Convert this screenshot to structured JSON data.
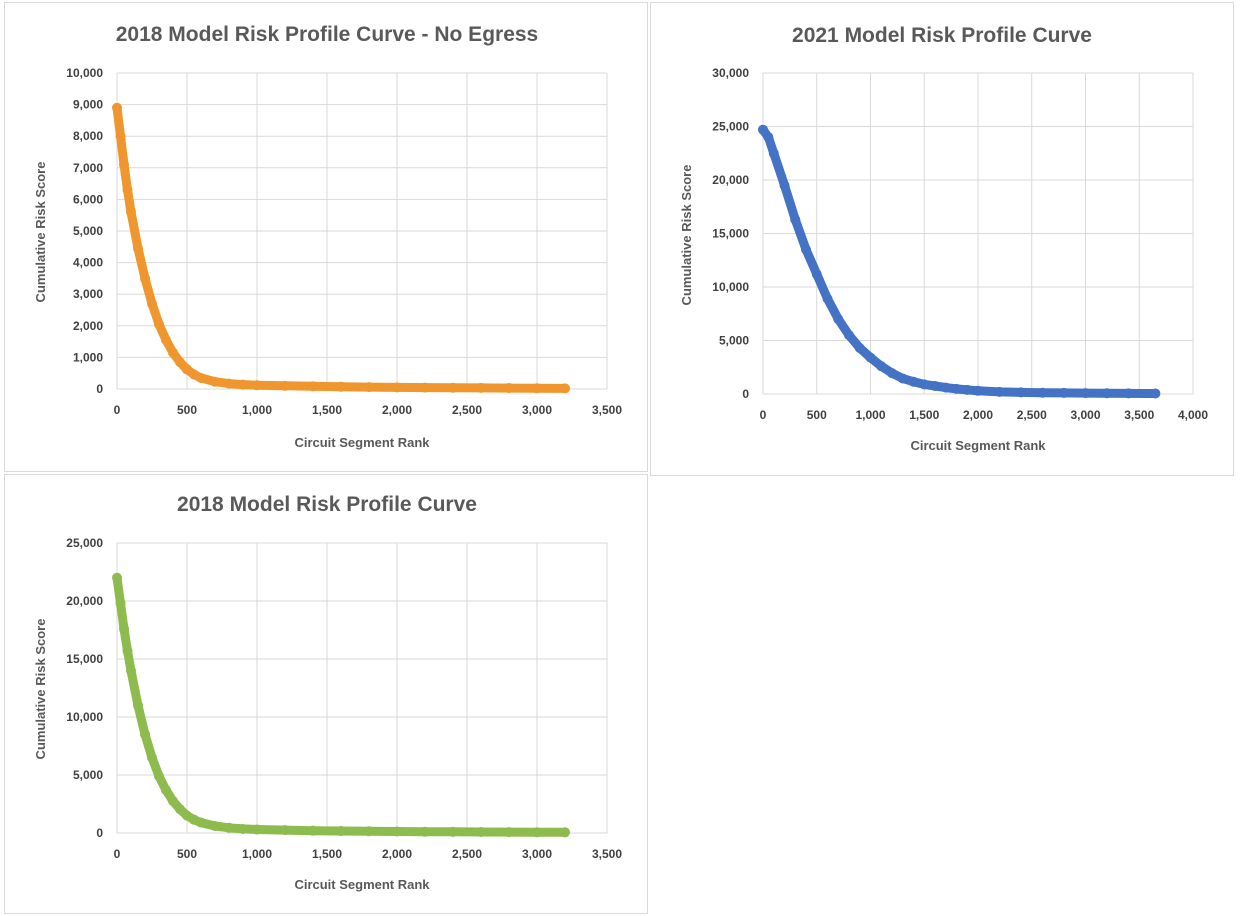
{
  "chart_data": [
    {
      "type": "scatter",
      "title": "2018 Model Risk Profile Curve - No Egress",
      "xlabel": "Circuit Segment Rank",
      "ylabel": "Cumulative Risk Score",
      "xlim": [
        0,
        3500
      ],
      "ylim": [
        0,
        10000
      ],
      "x_ticks": [
        "0",
        "500",
        "1,000",
        "1,500",
        "2,000",
        "2,500",
        "3,000",
        "3,500"
      ],
      "y_ticks": [
        "0",
        "1,000",
        "2,000",
        "3,000",
        "4,000",
        "5,000",
        "6,000",
        "7,000",
        "8,000",
        "9,000",
        "10,000"
      ],
      "grid": true,
      "legend": "none",
      "color": "#f0962e",
      "x": [
        0,
        25,
        50,
        75,
        100,
        150,
        200,
        250,
        300,
        350,
        400,
        450,
        500,
        550,
        600,
        700,
        800,
        900,
        1000,
        1200,
        1400,
        1600,
        1800,
        2000,
        2200,
        2400,
        2600,
        2800,
        3000,
        3200
      ],
      "y": [
        8900,
        8000,
        7100,
        6300,
        5600,
        4450,
        3500,
        2700,
        2050,
        1550,
        1150,
        850,
        620,
        460,
        350,
        230,
        170,
        140,
        120,
        100,
        85,
        70,
        60,
        50,
        45,
        40,
        35,
        30,
        25,
        20
      ]
    },
    {
      "type": "scatter",
      "title": "2021 Model Risk Profile Curve",
      "xlabel": "Circuit Segment Rank",
      "ylabel": "Cumulative Risk Score",
      "xlim": [
        0,
        4000
      ],
      "ylim": [
        0,
        30000
      ],
      "x_ticks": [
        "0",
        "500",
        "1,000",
        "1,500",
        "2,000",
        "2,500",
        "3,000",
        "3,500",
        "4,000"
      ],
      "y_ticks": [
        "0",
        "5,000",
        "10,000",
        "15,000",
        "20,000",
        "25,000",
        "30,000"
      ],
      "grid": true,
      "legend": "none",
      "color": "#4472c4",
      "x": [
        0,
        50,
        100,
        200,
        300,
        400,
        500,
        600,
        700,
        800,
        900,
        1000,
        1100,
        1200,
        1300,
        1400,
        1500,
        1600,
        1700,
        1800,
        1900,
        2000,
        2200,
        2400,
        2600,
        2800,
        3000,
        3200,
        3400,
        3650
      ],
      "y": [
        24700,
        24000,
        22500,
        19500,
        16300,
        13500,
        11200,
        8900,
        7000,
        5500,
        4300,
        3400,
        2600,
        1950,
        1450,
        1150,
        900,
        750,
        600,
        480,
        380,
        300,
        200,
        150,
        120,
        100,
        80,
        70,
        60,
        50
      ]
    },
    {
      "type": "scatter",
      "title": "2018  Model Risk Profile Curve",
      "xlabel": "Circuit Segment Rank",
      "ylabel": "Cumulative Risk Score",
      "xlim": [
        0,
        3500
      ],
      "ylim": [
        0,
        25000
      ],
      "x_ticks": [
        "0",
        "500",
        "1,000",
        "1,500",
        "2,000",
        "2,500",
        "3,000",
        "3,500"
      ],
      "y_ticks": [
        "0",
        "5,000",
        "10,000",
        "15,000",
        "20,000",
        "25,000"
      ],
      "grid": true,
      "legend": "none",
      "color": "#8dbb4e",
      "x": [
        0,
        25,
        50,
        75,
        100,
        150,
        200,
        250,
        300,
        350,
        400,
        450,
        500,
        550,
        600,
        700,
        800,
        900,
        1000,
        1200,
        1400,
        1600,
        1800,
        2000,
        2200,
        2400,
        2600,
        2800,
        3000,
        3200
      ],
      "y": [
        22000,
        19800,
        17600,
        15700,
        14000,
        11000,
        8500,
        6500,
        4900,
        3700,
        2750,
        2050,
        1500,
        1150,
        900,
        600,
        450,
        350,
        300,
        250,
        200,
        170,
        150,
        130,
        110,
        100,
        90,
        80,
        70,
        60
      ]
    }
  ]
}
